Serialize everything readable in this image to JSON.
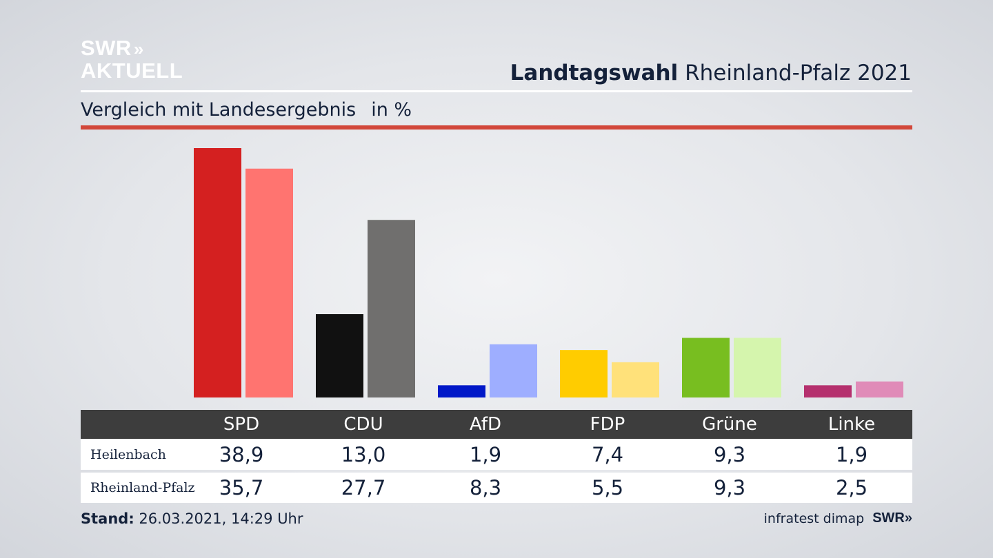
{
  "logo": {
    "line1": "SWR",
    "arrows": "»",
    "line2": "AKTUELL"
  },
  "header": {
    "title_bold": "Landtagswahl",
    "title_rest": "Rheinland-Pfalz 2021"
  },
  "subtitle": {
    "text": "Vergleich mit Landesergebnis",
    "unit": "in %"
  },
  "colors": {
    "accent_rule": "#d2473a",
    "header_row": "#3d3d3d",
    "local": [
      "#d42020",
      "#111111",
      "#0018c8",
      "#ffcc00",
      "#78be20",
      "#b5306e"
    ],
    "state": [
      "#ff7470",
      "#706f6e",
      "#9eaeff",
      "#ffe17a",
      "#d5f5ad",
      "#e08bb8"
    ]
  },
  "chart_data": {
    "type": "bar",
    "categories": [
      "SPD",
      "CDU",
      "AfD",
      "FDP",
      "Grüne",
      "Linke"
    ],
    "series": [
      {
        "name": "Heilenbach",
        "values": [
          38.9,
          13.0,
          1.9,
          7.4,
          9.3,
          1.9
        ]
      },
      {
        "name": "Rheinland-Pfalz",
        "values": [
          35.7,
          27.7,
          8.3,
          5.5,
          9.3,
          2.5
        ]
      }
    ],
    "title": "Landtagswahl Rheinland-Pfalz 2021",
    "subtitle": "Vergleich mit Landesergebnis",
    "ylabel": "in %",
    "ylim": [
      0,
      38.9
    ],
    "grid": false,
    "legend": "table below chart"
  },
  "table": {
    "headers": [
      "SPD",
      "CDU",
      "AfD",
      "FDP",
      "Grüne",
      "Linke"
    ],
    "rows": [
      {
        "label": "Heilenbach",
        "values": [
          "38,9",
          "13,0",
          "1,9",
          "7,4",
          "9,3",
          "1,9"
        ]
      },
      {
        "label": "Rheinland-Pfalz",
        "values": [
          "35,7",
          "27,7",
          "8,3",
          "5,5",
          "9,3",
          "2,5"
        ]
      }
    ]
  },
  "footer": {
    "stand_label": "Stand:",
    "stand_value": "26.03.2021, 14:29 Uhr",
    "source": "infratest dimap",
    "brand": "SWR",
    "brand_arrows": "»"
  }
}
